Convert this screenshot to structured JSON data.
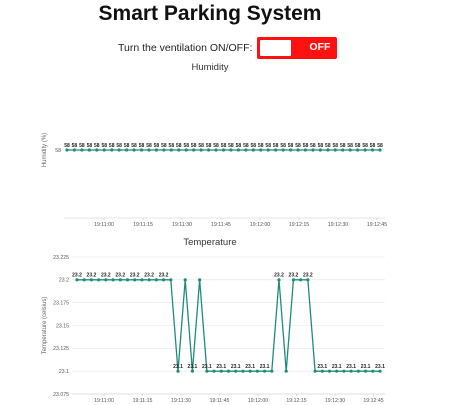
{
  "header": {
    "title": "Smart Parking System"
  },
  "ventilation": {
    "label": "Turn the ventilation ON/OFF:",
    "state_text": "OFF",
    "on": false
  },
  "colors": {
    "series": "#1f8c7a",
    "toggle_off": "#ff1111",
    "grid": "#e6e6e6"
  },
  "chart_data": [
    {
      "type": "line",
      "title": "Humidity",
      "ylabel": "Humidity (%)",
      "xlabel": "",
      "x_ticks": [
        "19:11:00",
        "19:11:15",
        "19:11:30",
        "19:11:45",
        "19:12:00",
        "19:12:15",
        "19:12:30",
        "19:12:45"
      ],
      "y_ticks": [
        "58"
      ],
      "ylim": [
        57,
        59
      ],
      "grid": false,
      "series": [
        {
          "values": [
            58,
            58,
            58,
            58,
            58,
            58,
            58,
            58,
            58,
            58,
            58,
            58,
            58,
            58,
            58,
            58,
            58,
            58,
            58,
            58,
            58,
            58,
            58,
            58,
            58,
            58,
            58,
            58,
            58,
            58,
            58,
            58,
            58,
            58,
            58,
            58,
            58,
            58,
            58,
            58,
            58,
            58,
            58
          ]
        }
      ]
    },
    {
      "type": "line",
      "title": "Temperature",
      "ylabel": "Temperature (celsius)",
      "xlabel": "",
      "x_ticks": [
        "19:11:00",
        "19:11:15",
        "19:11:30",
        "19:11:45",
        "19:12:00",
        "19:12:15",
        "19:12:30",
        "19:12:45"
      ],
      "y_ticks": [
        "23.225",
        "23.2",
        "23.175",
        "23.15",
        "23.125",
        "23.1",
        "23.075"
      ],
      "ylim": [
        23.075,
        23.225
      ],
      "grid": true,
      "series": [
        {
          "values": [
            23.2,
            23.2,
            23.2,
            23.2,
            23.2,
            23.2,
            23.2,
            23.2,
            23.2,
            23.2,
            23.2,
            23.2,
            23.2,
            23.2,
            23.1,
            23.2,
            23.1,
            23.2,
            23.1,
            23.1,
            23.1,
            23.1,
            23.1,
            23.1,
            23.1,
            23.1,
            23.1,
            23.1,
            23.2,
            23.1,
            23.2,
            23.2,
            23.2,
            23.1,
            23.1,
            23.1,
            23.1,
            23.1,
            23.1,
            23.1,
            23.1,
            23.1,
            23.1
          ]
        }
      ]
    }
  ]
}
